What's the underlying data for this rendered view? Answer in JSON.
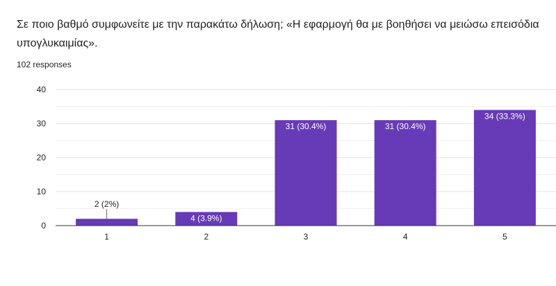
{
  "header": {
    "question": "Σε ποιο βαθμό συμφωνείτε με την παρακάτω δήλωση; «Η εφαρμογή θα με βοηθήσει να μειώσω επεισόδια υπογλυκαιμίας».",
    "responses": "102 responses"
  },
  "colors": {
    "bar": "#673ab7",
    "grid": "#e0e0e0",
    "axis": "#333333",
    "text": "#202124"
  },
  "chart_data": {
    "type": "bar",
    "categories": [
      "1",
      "2",
      "3",
      "4",
      "5"
    ],
    "values": [
      2,
      4,
      31,
      31,
      34
    ],
    "data_labels": [
      "2 (2%)",
      "4 (3.9%)",
      "31 (30.4%)",
      "31 (30.4%)",
      "34 (33.3%)"
    ],
    "ylim": [
      0,
      40
    ],
    "yticks": [
      0,
      10,
      20,
      30,
      40
    ],
    "grid": true,
    "title": "",
    "xlabel": "",
    "ylabel": ""
  }
}
